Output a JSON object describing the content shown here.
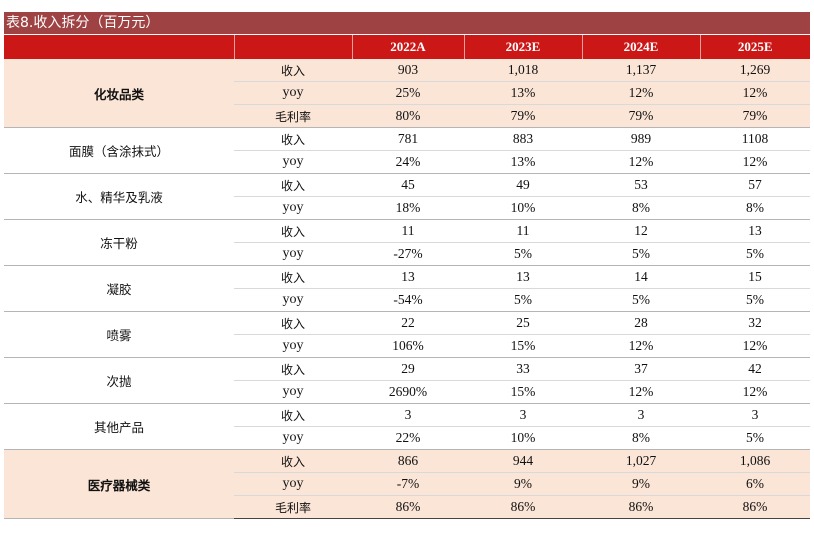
{
  "table_title": "表8.收入拆分（百万元）",
  "columns": [
    "",
    "",
    "2022A",
    "2023E",
    "2024E",
    "2025E"
  ],
  "groups": [
    {
      "name": "化妆品类",
      "bold": true,
      "shaded": true,
      "rows": [
        {
          "metric": "收入",
          "values": [
            "903",
            "1,018",
            "1,137",
            "1,269"
          ]
        },
        {
          "metric": "yoy",
          "values": [
            "25%",
            "13%",
            "12%",
            "12%"
          ]
        },
        {
          "metric": "毛利率",
          "values": [
            "80%",
            "79%",
            "79%",
            "79%"
          ]
        }
      ]
    },
    {
      "name": "面膜（含涂抹式）",
      "bold": false,
      "shaded": false,
      "rows": [
        {
          "metric": "收入",
          "values": [
            "781",
            "883",
            "989",
            "1108"
          ]
        },
        {
          "metric": "yoy",
          "values": [
            "24%",
            "13%",
            "12%",
            "12%"
          ]
        }
      ]
    },
    {
      "name": "水、精华及乳液",
      "bold": false,
      "shaded": false,
      "rows": [
        {
          "metric": "收入",
          "values": [
            "45",
            "49",
            "53",
            "57"
          ]
        },
        {
          "metric": "yoy",
          "values": [
            "18%",
            "10%",
            "8%",
            "8%"
          ]
        }
      ]
    },
    {
      "name": "冻干粉",
      "bold": false,
      "shaded": false,
      "rows": [
        {
          "metric": "收入",
          "values": [
            "11",
            "11",
            "12",
            "13"
          ]
        },
        {
          "metric": "yoy",
          "values": [
            "-27%",
            "5%",
            "5%",
            "5%"
          ]
        }
      ]
    },
    {
      "name": "凝胶",
      "bold": false,
      "shaded": false,
      "rows": [
        {
          "metric": "收入",
          "values": [
            "13",
            "13",
            "14",
            "15"
          ]
        },
        {
          "metric": "yoy",
          "values": [
            "-54%",
            "5%",
            "5%",
            "5%"
          ]
        }
      ]
    },
    {
      "name": "喷雾",
      "bold": false,
      "shaded": false,
      "rows": [
        {
          "metric": "收入",
          "values": [
            "22",
            "25",
            "28",
            "32"
          ]
        },
        {
          "metric": "yoy",
          "values": [
            "106%",
            "15%",
            "12%",
            "12%"
          ]
        }
      ]
    },
    {
      "name": "次抛",
      "bold": false,
      "shaded": false,
      "rows": [
        {
          "metric": "收入",
          "values": [
            "29",
            "33",
            "37",
            "42"
          ]
        },
        {
          "metric": "yoy",
          "values": [
            "2690%",
            "15%",
            "12%",
            "12%"
          ]
        }
      ]
    },
    {
      "name": "其他产品",
      "bold": false,
      "shaded": false,
      "rows": [
        {
          "metric": "收入",
          "values": [
            "3",
            "3",
            "3",
            "3"
          ]
        },
        {
          "metric": "yoy",
          "values": [
            "22%",
            "10%",
            "8%",
            "5%"
          ]
        }
      ]
    },
    {
      "name": "医疗器械类",
      "bold": true,
      "shaded": true,
      "rows": [
        {
          "metric": "收入",
          "values": [
            "866",
            "944",
            "1,027",
            "1,086"
          ]
        },
        {
          "metric": "yoy",
          "values": [
            "-7%",
            "9%",
            "9%",
            "6%"
          ]
        },
        {
          "metric": "毛利率",
          "values": [
            "86%",
            "86%",
            "86%",
            "86%"
          ]
        }
      ]
    }
  ]
}
